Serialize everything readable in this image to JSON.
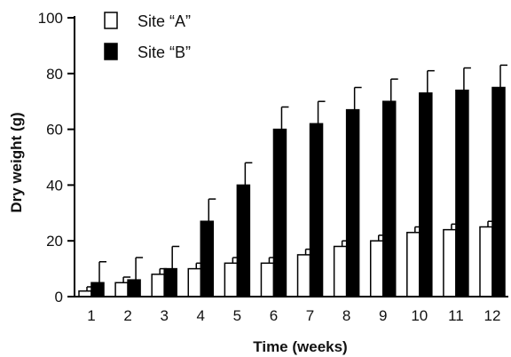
{
  "chart_data": {
    "type": "bar",
    "xlabel": "Time (weeks)",
    "ylabel": "Dry weight (g)",
    "ylim": [
      0,
      100
    ],
    "yticks": [
      0,
      20,
      40,
      60,
      80,
      100
    ],
    "categories": [
      "1",
      "2",
      "3",
      "4",
      "5",
      "6",
      "7",
      "8",
      "9",
      "10",
      "11",
      "12"
    ],
    "legend_position": "top-left",
    "grid": false,
    "series": [
      {
        "name": "Site “A”",
        "color": "#ffffff",
        "values": [
          2,
          5,
          8,
          10,
          12,
          12,
          15,
          18,
          20,
          23,
          24,
          25
        ],
        "errors": [
          1.5,
          2,
          2,
          2,
          2,
          2,
          2,
          2,
          2,
          2,
          2,
          2
        ]
      },
      {
        "name": "Site “B”",
        "color": "#000000",
        "values": [
          5,
          6,
          10,
          27,
          40,
          60,
          62,
          67,
          70,
          73,
          74,
          75
        ],
        "errors": [
          7.5,
          8,
          8,
          8,
          8,
          8,
          8,
          8,
          8,
          8,
          8,
          8
        ]
      }
    ]
  }
}
